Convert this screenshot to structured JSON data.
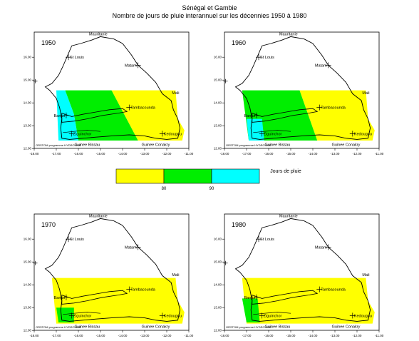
{
  "title": "Sénégal et Gambie",
  "subtitle": "Nombre de jours de pluie interannuel sur les décennies 1950 à 1980",
  "panels": [
    {
      "year": 1950
    },
    {
      "year": 1960
    },
    {
      "year": 1970
    },
    {
      "year": 1980
    }
  ],
  "places": [
    {
      "label": "Mauritanie"
    },
    {
      "label": "St Louis"
    },
    {
      "label": "Matam"
    },
    {
      "label": "Mali"
    },
    {
      "label": "Tambacounda"
    },
    {
      "label": "Kedougou"
    },
    {
      "label": "Banjul"
    },
    {
      "label": "Ziguinchor"
    },
    {
      "label": "Guinee Bissau"
    },
    {
      "label": "Guinee Conakry"
    }
  ],
  "credit": "ORSTOM programme HYDRO AOC",
  "x_ticks": [
    "-18.00",
    "-17.00",
    "-16.00",
    "-15.00",
    "-14.00",
    "-13.00",
    "-12.00",
    "-11.00"
  ],
  "y_ticks": [
    "16.00",
    "15.00",
    "14.00",
    "13.00",
    "12.00"
  ],
  "legend": {
    "title": "Jours de pluie",
    "thresholds": [
      80,
      90
    ]
  }
}
